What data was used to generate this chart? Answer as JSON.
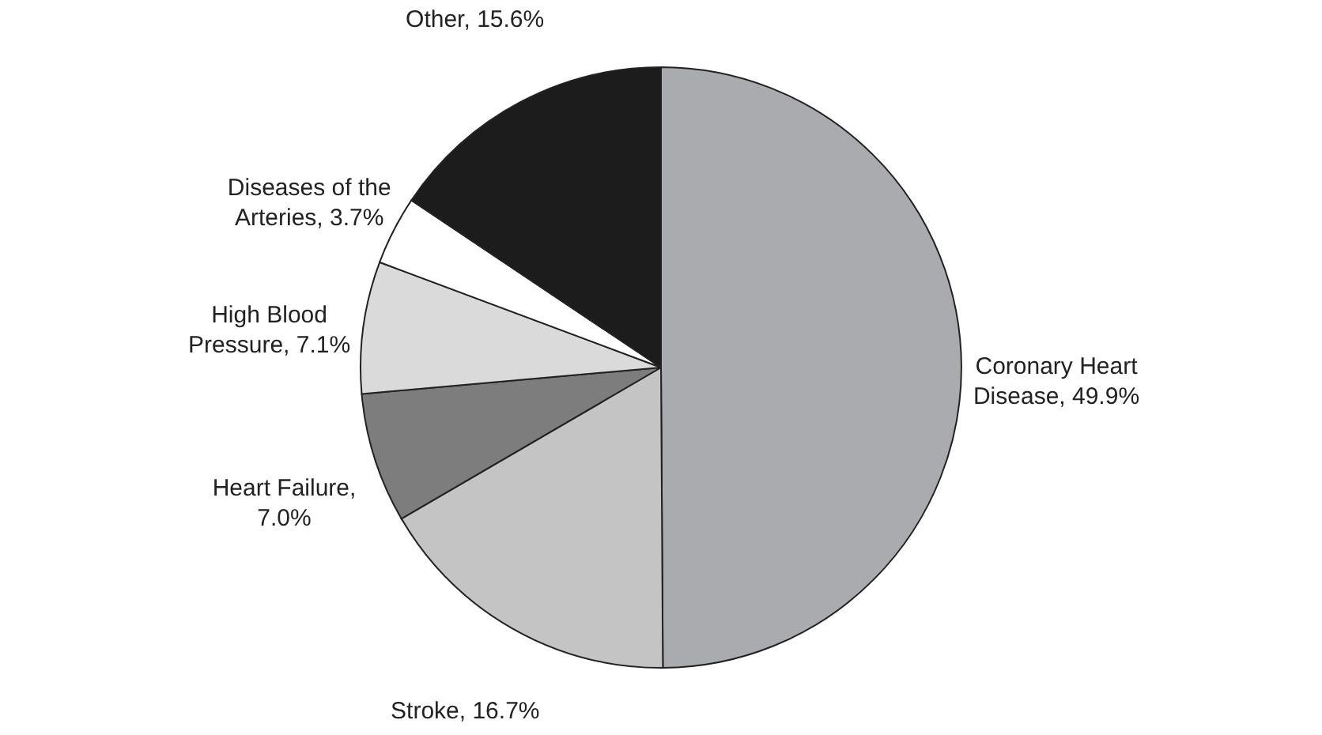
{
  "chart_data": {
    "type": "pie",
    "categories": [
      "Coronary Heart Disease, 49.9%",
      "Stroke, 16.7%",
      "Heart Failure, 7.0%",
      "High Blood Pressure, 7.1%",
      "Diseases of the Arteries, 3.7%",
      "Other, 15.6%"
    ],
    "values": [
      49.9,
      16.7,
      7.0,
      7.1,
      3.7,
      15.6
    ],
    "colors": [
      "#aaabae",
      "#c4c4c4",
      "#7d7d7d",
      "#dadada",
      "#ffffff",
      "#1c1c1c"
    ]
  }
}
